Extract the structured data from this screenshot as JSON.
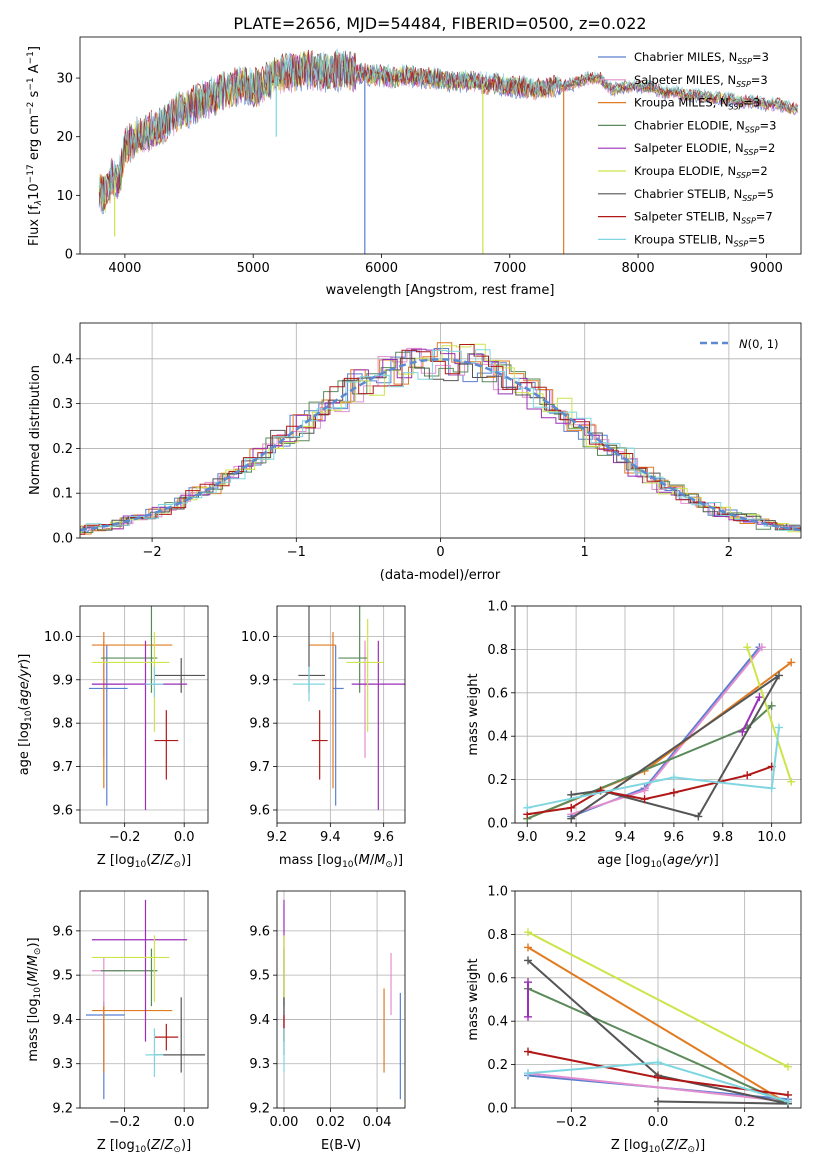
{
  "figure": {
    "title": "PLATE=2656, MJD=54484, FIBERID=0500, z=0.022"
  },
  "colors": {
    "Chabrier MILES": "#5b7fd0",
    "Salpeter MILES": "#e38fcf",
    "Kroupa MILES": "#e07b22",
    "Chabrier ELODIE": "#5a8a5a",
    "Salpeter ELODIE": "#9b2fb8",
    "Kroupa ELODIE": "#cde44a",
    "Chabrier STELIB": "#555555",
    "Salpeter STELIB": "#b01818",
    "Kroupa STELIB": "#7fd6e0"
  },
  "chart_data": [
    {
      "id": "spectrum",
      "type": "line",
      "title": "PLATE=2656, MJD=54484, FIBERID=0500, z=0.022",
      "xlabel": "wavelength [Angstrom, rest frame]",
      "ylabel_parts": [
        "Flux [f",
        "λ",
        "10",
        "−17",
        " erg cm",
        "−2",
        " s",
        "−1",
        " A",
        "−1",
        "]"
      ],
      "xlim": [
        3650,
        9270
      ],
      "ylim": [
        0,
        37
      ],
      "xticks": [
        4000,
        5000,
        6000,
        7000,
        8000,
        9000
      ],
      "yticks": [
        0,
        10,
        20,
        30
      ],
      "grid": false,
      "legend_placement": "top-right",
      "envelope": {
        "x": [
          3800,
          3850,
          3900,
          3950,
          4000,
          4100,
          4200,
          4300,
          4400,
          4500,
          4600,
          4700,
          4800,
          4900,
          5000,
          5100,
          5200,
          5300,
          5400,
          5500,
          5600,
          5700,
          5800,
          5900,
          6000,
          6100,
          6200,
          6300,
          6400,
          6500,
          6600,
          6700,
          6800,
          6900,
          7000,
          7100,
          7200,
          7300,
          7400,
          7500,
          7600,
          7700,
          7800,
          7900,
          8000,
          8100,
          8200,
          8300,
          8400,
          8500,
          8600,
          8700,
          8800,
          8900,
          9000,
          9100,
          9250
        ],
        "y": [
          11,
          10,
          13,
          12,
          18,
          20,
          21,
          22,
          24,
          25,
          26,
          27,
          28,
          29,
          28,
          29.5,
          30.5,
          31,
          31.5,
          31,
          31,
          31.5,
          31,
          30.5,
          30.5,
          30,
          30.5,
          30,
          30,
          29.5,
          29.5,
          29.5,
          29,
          29,
          28.5,
          28.5,
          28,
          28.5,
          28.5,
          29,
          30,
          30,
          28,
          28.5,
          28.5,
          28.5,
          27.5,
          27.5,
          27,
          27,
          26.5,
          26.5,
          26,
          26,
          25.5,
          25.5,
          24.5
        ]
      },
      "series": [
        {
          "name": "Chabrier MILES, N",
          "sub": "SSP",
          "suffix": "=3",
          "key": "Chabrier MILES"
        },
        {
          "name": "Salpeter MILES, N",
          "sub": "SSP",
          "suffix": "=3",
          "key": "Salpeter MILES"
        },
        {
          "name": "Kroupa MILES, N",
          "sub": "SSP",
          "suffix": "=3",
          "key": "Kroupa MILES"
        },
        {
          "name": "Chabrier ELODIE, N",
          "sub": "SSP",
          "suffix": "=3",
          "key": "Chabrier ELODIE"
        },
        {
          "name": "Salpeter ELODIE, N",
          "sub": "SSP",
          "suffix": "=2",
          "key": "Salpeter ELODIE"
        },
        {
          "name": "Kroupa ELODIE, N",
          "sub": "SSP",
          "suffix": "=2",
          "key": "Kroupa ELODIE"
        },
        {
          "name": "Chabrier STELIB, N",
          "sub": "SSP",
          "suffix": "=5",
          "key": "Chabrier STELIB"
        },
        {
          "name": "Salpeter STELIB, N",
          "sub": "SSP",
          "suffix": "=7",
          "key": "Salpeter STELIB"
        },
        {
          "name": "Kroupa STELIB, N",
          "sub": "SSP",
          "suffix": "=5",
          "key": "Kroupa STELIB"
        }
      ],
      "drops": [
        {
          "x": 5870,
          "y": 0,
          "key": "Chabrier MILES"
        },
        {
          "x": 6790,
          "y": 0,
          "key": "Kroupa ELODIE"
        },
        {
          "x": 3920,
          "y": 3,
          "key": "Kroupa ELODIE"
        },
        {
          "x": 7420,
          "y": 0,
          "key": "Kroupa MILES"
        },
        {
          "x": 5180,
          "y": 20,
          "key": "Kroupa STELIB"
        }
      ]
    },
    {
      "id": "residuals",
      "type": "histogram",
      "xlabel": "(data-model)/error",
      "ylabel": "Normed distribution",
      "xlim": [
        -2.5,
        2.5
      ],
      "ylim": [
        0,
        0.48
      ],
      "xticks": [
        -2,
        -1,
        0,
        1,
        2
      ],
      "yticks": [
        0.0,
        0.1,
        0.2,
        0.3,
        0.4
      ],
      "grid": true,
      "legend_placement": "top-right",
      "reference_curve": {
        "label": "N(0,1)",
        "mean": 0,
        "sigma": 1,
        "style": "dashed",
        "color": "#5b8ad0"
      },
      "bin_width": 0.1
    },
    {
      "id": "age-vs-Z",
      "type": "scatter",
      "xlabel": "Z [log10(Z/Z⊙)]",
      "ylabel": "age [log10(age/yr)]",
      "xlim": [
        -0.35,
        0.08
      ],
      "ylim": [
        9.57,
        10.07
      ],
      "xticks": [
        -0.2,
        0.0
      ],
      "yticks": [
        9.6,
        9.7,
        9.8,
        9.9,
        10.0
      ],
      "grid": true,
      "points": [
        {
          "key": "Chabrier MILES",
          "x": -0.26,
          "y": 9.88,
          "xerr": [
            0.06,
            0.07
          ],
          "yerr": [
            0.27,
            0.1
          ]
        },
        {
          "key": "Salpeter MILES",
          "x": -0.27,
          "y": 9.89,
          "xerr": [
            0.04,
            0.06
          ],
          "yerr": [
            0.17,
            0.1
          ]
        },
        {
          "key": "Kroupa MILES",
          "x": -0.27,
          "y": 9.98,
          "xerr": [
            0.04,
            0.23
          ],
          "yerr": [
            0.33,
            0.03
          ]
        },
        {
          "key": "Chabrier ELODIE",
          "x": -0.11,
          "y": 9.95,
          "xerr": [
            0.17,
            0.02
          ],
          "yerr": [
            0.08,
            0.12
          ]
        },
        {
          "key": "Salpeter ELODIE",
          "x": -0.13,
          "y": 9.89,
          "xerr": [
            0.18,
            0.14
          ],
          "yerr": [
            0.29,
            0.1
          ]
        },
        {
          "key": "Kroupa ELODIE",
          "x": -0.1,
          "y": 9.94,
          "xerr": [
            0.21,
            0.05
          ],
          "yerr": [
            0.16,
            0.07
          ]
        },
        {
          "key": "Chabrier STELIB",
          "x": -0.01,
          "y": 9.91,
          "xerr": [
            0.09,
            0.08
          ],
          "yerr": [
            0.04,
            0.04
          ]
        },
        {
          "key": "Salpeter STELIB",
          "x": -0.06,
          "y": 9.76,
          "xerr": [
            0.04,
            0.04
          ],
          "yerr": [
            0.09,
            0.07
          ]
        },
        {
          "key": "Kroupa STELIB",
          "x": -0.1,
          "y": 9.89,
          "xerr": [
            0.03,
            0.03
          ],
          "yerr": [
            0.03,
            0.04
          ]
        }
      ]
    },
    {
      "id": "age-vs-mass",
      "type": "scatter",
      "xlabel": "mass [log10(M/M⊙)]",
      "ylabel": "",
      "xlim": [
        9.2,
        9.68
      ],
      "ylim": [
        9.57,
        10.07
      ],
      "xticks": [
        9.2,
        9.4,
        9.6
      ],
      "yticks": [
        9.6,
        9.7,
        9.8,
        9.9,
        10.0
      ],
      "grid": true,
      "points": [
        {
          "key": "Chabrier MILES",
          "x": 9.42,
          "y": 9.88,
          "xerr": [
            0.01,
            0.03
          ],
          "yerr": [
            0.27,
            0.1
          ]
        },
        {
          "key": "Salpeter MILES",
          "x": 9.53,
          "y": 9.89,
          "xerr": [
            0.03,
            0.03
          ],
          "yerr": [
            0.17,
            0.1
          ]
        },
        {
          "key": "Kroupa MILES",
          "x": 9.41,
          "y": 9.98,
          "xerr": [
            0.09,
            0.01
          ],
          "yerr": [
            0.33,
            0.03
          ]
        },
        {
          "key": "Chabrier ELODIE",
          "x": 9.51,
          "y": 9.95,
          "xerr": [
            0.08,
            0.03
          ],
          "yerr": [
            0.08,
            0.12
          ]
        },
        {
          "key": "Salpeter ELODIE",
          "x": 9.58,
          "y": 9.89,
          "xerr": [
            0.1,
            0.1
          ],
          "yerr": [
            0.29,
            0.1
          ]
        },
        {
          "key": "Kroupa ELODIE",
          "x": 9.54,
          "y": 9.94,
          "xerr": [
            0.08,
            0.06
          ],
          "yerr": [
            0.16,
            0.1
          ]
        },
        {
          "key": "Chabrier STELIB",
          "x": 9.32,
          "y": 9.91,
          "xerr": [
            0.04,
            0.06
          ],
          "yerr": [
            0.04,
            0.16
          ]
        },
        {
          "key": "Salpeter STELIB",
          "x": 9.36,
          "y": 9.76,
          "xerr": [
            0.03,
            0.03
          ],
          "yerr": [
            0.09,
            0.07
          ]
        },
        {
          "key": "Kroupa STELIB",
          "x": 9.32,
          "y": 9.89,
          "xerr": [
            0.06,
            0.06
          ],
          "yerr": [
            0.04,
            0.04
          ]
        }
      ]
    },
    {
      "id": "weight-vs-age",
      "type": "line",
      "xlabel": "age [log10(age/yr)]",
      "ylabel": "mass weight",
      "xlim": [
        8.95,
        10.12
      ],
      "ylim": [
        0,
        1
      ],
      "xticks": [
        9.0,
        9.2,
        9.4,
        9.6,
        9.8,
        10.0
      ],
      "yticks": [
        0.0,
        0.2,
        0.4,
        0.6,
        0.8,
        1.0
      ],
      "grid": true,
      "series": [
        {
          "key": "Chabrier MILES",
          "x": [
            9.18,
            9.48,
            9.95
          ],
          "y": [
            0.03,
            0.16,
            0.81
          ]
        },
        {
          "key": "Salpeter MILES",
          "x": [
            9.18,
            9.48,
            9.96
          ],
          "y": [
            0.04,
            0.15,
            0.81
          ]
        },
        {
          "key": "Kroupa MILES",
          "x": [
            9.0,
            9.48,
            10.08
          ],
          "y": [
            0.02,
            0.24,
            0.74
          ]
        },
        {
          "key": "Chabrier ELODIE",
          "x": [
            9.0,
            9.9,
            10.0
          ],
          "y": [
            0.02,
            0.44,
            0.54
          ]
        },
        {
          "key": "Salpeter ELODIE",
          "x": [
            9.88,
            9.95
          ],
          "y": [
            0.42,
            0.58
          ]
        },
        {
          "key": "Kroupa ELODIE",
          "x": [
            9.9,
            10.08
          ],
          "y": [
            0.81,
            0.19
          ]
        },
        {
          "key": "Chabrier STELIB",
          "x": [
            9.18,
            9.3,
            9.7,
            10.03,
            9.18
          ],
          "y": [
            0.13,
            0.15,
            0.03,
            0.68,
            0.02
          ]
        },
        {
          "key": "Salpeter STELIB",
          "x": [
            9.0,
            9.18,
            9.3,
            9.48,
            9.6,
            9.9,
            10.0
          ],
          "y": [
            0.04,
            0.07,
            0.15,
            0.11,
            0.14,
            0.22,
            0.26
          ]
        },
        {
          "key": "Kroupa STELIB",
          "x": [
            9.0,
            9.6,
            10.0,
            10.03
          ],
          "y": [
            0.07,
            0.21,
            0.16,
            0.44
          ]
        }
      ]
    },
    {
      "id": "mass-vs-Z",
      "type": "scatter",
      "xlabel": "Z [log10(Z/Z⊙)]",
      "ylabel": "mass [log10(M/M⊙)]",
      "xlim": [
        -0.35,
        0.08
      ],
      "ylim": [
        9.2,
        9.69
      ],
      "xticks": [
        -0.2,
        0.0
      ],
      "yticks": [
        9.2,
        9.3,
        9.4,
        9.5,
        9.6
      ],
      "grid": true,
      "points": [
        {
          "key": "Chabrier MILES",
          "x": -0.27,
          "y": 9.41,
          "xerr": [
            0.06,
            0.07
          ],
          "yerr": [
            0.19,
            0.03
          ]
        },
        {
          "key": "Salpeter MILES",
          "x": -0.27,
          "y": 9.51,
          "xerr": [
            0.04,
            0.06
          ],
          "yerr": [
            0.14,
            0.03
          ]
        },
        {
          "key": "Kroupa MILES",
          "x": -0.27,
          "y": 9.42,
          "xerr": [
            0.04,
            0.23
          ],
          "yerr": [
            0.14,
            0.01
          ]
        },
        {
          "key": "Chabrier ELODIE",
          "x": -0.11,
          "y": 9.51,
          "xerr": [
            0.17,
            0.02
          ],
          "yerr": [
            0.08,
            0.05
          ]
        },
        {
          "key": "Salpeter ELODIE",
          "x": -0.13,
          "y": 9.58,
          "xerr": [
            0.18,
            0.14
          ],
          "yerr": [
            0.23,
            0.09
          ]
        },
        {
          "key": "Kroupa ELODIE",
          "x": -0.1,
          "y": 9.54,
          "xerr": [
            0.21,
            0.05
          ],
          "yerr": [
            0.1,
            0.05
          ]
        },
        {
          "key": "Chabrier STELIB",
          "x": -0.01,
          "y": 9.32,
          "xerr": [
            0.09,
            0.08
          ],
          "yerr": [
            0.04,
            0.13
          ]
        },
        {
          "key": "Salpeter STELIB",
          "x": -0.06,
          "y": 9.36,
          "xerr": [
            0.04,
            0.04
          ],
          "yerr": [
            0.03,
            0.03
          ]
        },
        {
          "key": "Kroupa STELIB",
          "x": -0.1,
          "y": 9.32,
          "xerr": [
            0.03,
            0.03
          ],
          "yerr": [
            0.05,
            0.06
          ]
        }
      ]
    },
    {
      "id": "mass-vs-ebv",
      "type": "scatter",
      "xlabel": "E(B-V)",
      "ylabel": "",
      "xlim": [
        -0.003,
        0.052
      ],
      "ylim": [
        9.2,
        9.69
      ],
      "xticks": [
        0.0,
        0.02,
        0.04
      ],
      "yticks": [
        9.2,
        9.3,
        9.4,
        9.5,
        9.6
      ],
      "grid": true,
      "points": [
        {
          "key": "Chabrier MILES",
          "x": 0.05,
          "y": 9.41,
          "yerr": [
            0.19,
            0.05
          ]
        },
        {
          "key": "Salpeter MILES",
          "x": 0.046,
          "y": 9.51,
          "yerr": [
            0.1,
            0.04
          ]
        },
        {
          "key": "Kroupa MILES",
          "x": 0.043,
          "y": 9.42,
          "yerr": [
            0.14,
            0.05
          ]
        },
        {
          "key": "Chabrier ELODIE",
          "x": 0.0,
          "y": 9.51,
          "yerr": [
            0.08,
            0.05
          ]
        },
        {
          "key": "Salpeter ELODIE",
          "x": 0.0,
          "y": 9.58,
          "yerr": [
            0.2,
            0.09
          ]
        },
        {
          "key": "Kroupa ELODIE",
          "x": 0.0,
          "y": 9.54,
          "yerr": [
            0.1,
            0.05
          ]
        },
        {
          "key": "Chabrier STELIB",
          "x": 0.0,
          "y": 9.32,
          "yerr": [
            0.0,
            0.13
          ]
        },
        {
          "key": "Salpeter STELIB",
          "x": 0.0,
          "y": 9.36,
          "yerr": [
            0.01,
            0.05
          ]
        },
        {
          "key": "Kroupa STELIB",
          "x": 0.0,
          "y": 9.32,
          "yerr": [
            0.04,
            0.06
          ]
        }
      ]
    },
    {
      "id": "weight-vs-Z",
      "type": "line",
      "xlabel": "Z [log10(Z/Z⊙)]",
      "ylabel": "mass weight",
      "xlim": [
        -0.33,
        0.33
      ],
      "ylim": [
        0,
        1
      ],
      "xticks": [
        -0.2,
        0.0,
        0.2
      ],
      "yticks": [
        0.0,
        0.2,
        0.4,
        0.6,
        0.8,
        1.0
      ],
      "grid": true,
      "series": [
        {
          "key": "Chabrier MILES",
          "x": [
            -0.3,
            0.3
          ],
          "y": [
            0.15,
            0.04
          ]
        },
        {
          "key": "Salpeter MILES",
          "x": [
            -0.3,
            0.3
          ],
          "y": [
            0.16,
            0.03
          ]
        },
        {
          "key": "Kroupa MILES",
          "x": [
            -0.3,
            0.3
          ],
          "y": [
            0.74,
            0.02
          ]
        },
        {
          "key": "Chabrier ELODIE",
          "x": [
            -0.3,
            0.3
          ],
          "y": [
            0.55,
            0.02
          ]
        },
        {
          "key": "Salpeter ELODIE",
          "x": [
            -0.3,
            -0.3
          ],
          "y": [
            0.42,
            0.58
          ]
        },
        {
          "key": "Kroupa ELODIE",
          "x": [
            -0.3,
            0.3
          ],
          "y": [
            0.81,
            0.19
          ]
        },
        {
          "key": "Chabrier STELIB",
          "x": [
            -0.3,
            0.0,
            0.3,
            0.0
          ],
          "y": [
            0.68,
            0.15,
            0.02,
            0.03
          ]
        },
        {
          "key": "Salpeter STELIB",
          "x": [
            -0.3,
            0.0,
            0.3
          ],
          "y": [
            0.26,
            0.14,
            0.06
          ]
        },
        {
          "key": "Kroupa STELIB",
          "x": [
            -0.3,
            0.0,
            0.3
          ],
          "y": [
            0.16,
            0.21,
            0.03
          ]
        }
      ]
    }
  ]
}
